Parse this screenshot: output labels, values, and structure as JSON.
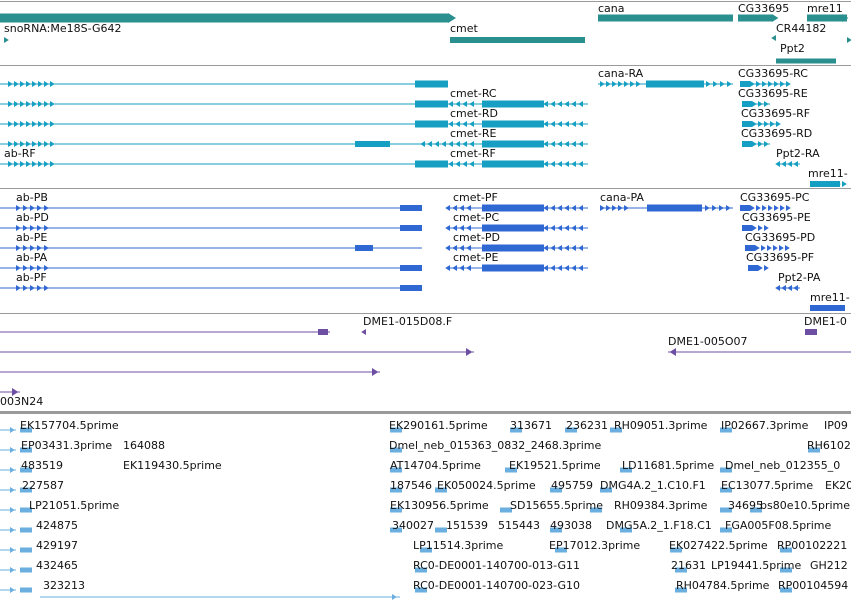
{
  "colors": {
    "gene": "#2a8f8f",
    "tx": "#169fc2",
    "cds": "#2f68d2",
    "clone": "#6c4ea3",
    "est": "#6aafe0"
  },
  "tracks": {
    "genes": {
      "labels": [
        "cana",
        "CG33695",
        "mre11",
        "snoRNA:Me18S-G642",
        "cmet",
        "CR44182",
        "Ppt2"
      ]
    },
    "transcripts": {
      "labels": [
        "cana-RA",
        "CG33695-RC",
        "cmet-RC",
        "CG33695-RE",
        "cmet-RD",
        "CG33695-RF",
        "cmet-RE",
        "CG33695-RD",
        "ab-RF",
        "cmet-RF",
        "Ppt2-RA",
        "mre11-"
      ]
    },
    "cds": {
      "labels": [
        "ab-PB",
        "cmet-PF",
        "cana-PA",
        "CG33695-PC",
        "ab-PD",
        "cmet-PC",
        "CG33695-PE",
        "ab-PE",
        "cmet-PD",
        "CG33695-PD",
        "ab-PA",
        "cmet-PE",
        "CG33695-PF",
        "ab-PF",
        "Ppt2-PA",
        "mre11-"
      ]
    },
    "clones": {
      "labels": [
        "DME1-015D08.F",
        "DME1-0",
        "DME1-005O07",
        "003N24"
      ]
    },
    "ests": {
      "labels": [
        "EK157704.5prime",
        "EK290161.5prime",
        "313671",
        "236231",
        "RH09051.3prime",
        "IP02667.3prime",
        "IP09",
        "EP03431.3prime",
        "164088",
        "Dmel_neb_015363_0832_2468.3prime",
        "RH6102",
        "483519",
        "EK119430.5prime",
        "AT14704.5prime",
        "EK19521.5prime",
        "LD11681.5prime",
        "Dmel_neb_012355_0",
        "227587",
        "187546",
        "EK050024.5prime",
        "495759",
        "DMG4A.2_1.C10.F1",
        "EC13077.5prime",
        "EK20",
        "LP21051.5prime",
        "EK130956.5prime",
        "SD15655.5prime",
        "RH09384.3prime",
        "34695",
        "bs80e10.5prime",
        "424875",
        "340027",
        "151539",
        "515443",
        "493038",
        "DMG5A.2_1.F18.C1",
        "FGA005F08.5prime",
        "429197",
        "LP11514.3prime",
        "EP17012.3prime",
        "EK027422.5prime",
        "RP00102221",
        "432465",
        "RC0-DE0001-140700-013-G11",
        "21631",
        "LP19441.5prime",
        "GH212",
        "323213",
        "RC0-DE0001-140700-023-G10",
        "RH04784.5prime",
        "RP00104594"
      ]
    }
  }
}
